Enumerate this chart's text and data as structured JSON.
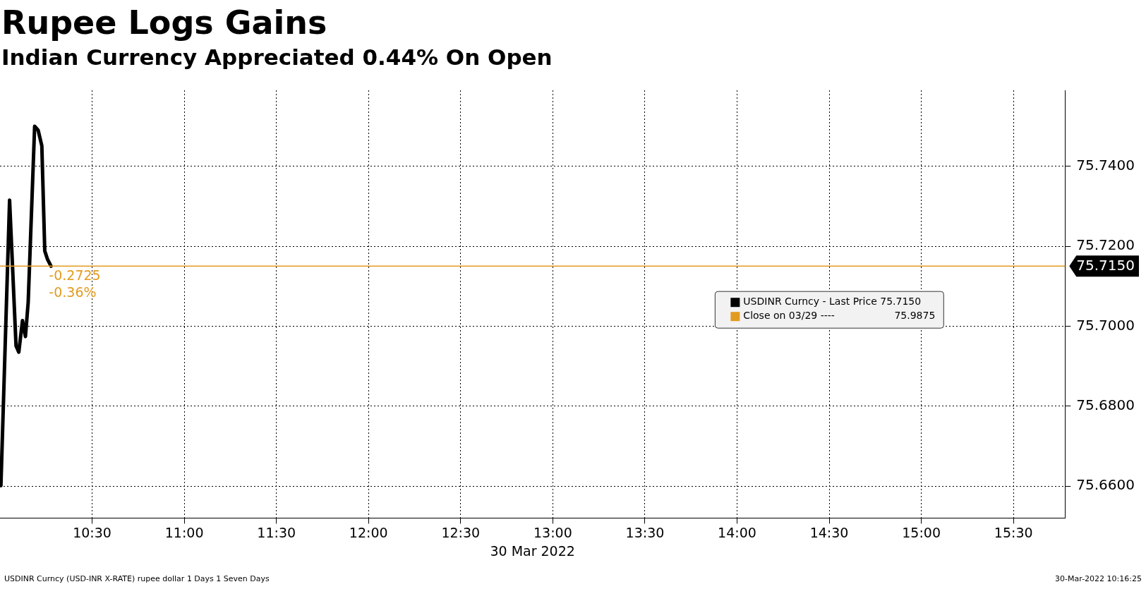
{
  "chart_data": {
    "type": "line",
    "title": "Rupee Logs Gains",
    "subtitle": "Indian Currency Appreciated 0.44% On Open",
    "xlabel": "30 Mar 2022",
    "x": [
      10.005,
      10.052,
      10.087,
      10.102,
      10.122,
      10.138,
      10.153,
      10.188,
      10.207,
      10.227,
      10.243,
      10.258,
      10.277
    ],
    "series": [
      {
        "name": "USDINR Curncy - Last Price 75.7150",
        "color": "#000000",
        "values": [
          75.6601,
          75.7315,
          75.6951,
          75.6935,
          75.7014,
          75.6974,
          75.706,
          75.75,
          75.749,
          75.7451,
          75.7188,
          75.7167,
          75.715
        ]
      }
    ],
    "xlim": [
      10.0,
      15.78
    ],
    "xticks": [
      {
        "value": 10.5,
        "label": "10:30"
      },
      {
        "value": 11,
        "label": "11:00"
      },
      {
        "value": 11.5,
        "label": "11:30"
      },
      {
        "value": 12,
        "label": "12:00"
      },
      {
        "value": 12.5,
        "label": "12:30"
      },
      {
        "value": 13,
        "label": "13:00"
      },
      {
        "value": 13.5,
        "label": "13:30"
      },
      {
        "value": 14,
        "label": "14:00"
      },
      {
        "value": 14.5,
        "label": "14:30"
      },
      {
        "value": 15,
        "label": "15:00"
      },
      {
        "value": 15.5,
        "label": "15:30"
      }
    ],
    "ylim": [
      75.652,
      75.759
    ],
    "yticks": [
      {
        "value": 75.66,
        "label": "75.6600"
      },
      {
        "value": 75.68,
        "label": "75.6800"
      },
      {
        "value": 75.7,
        "label": "75.7000"
      },
      {
        "value": 75.715,
        "label": "75.7150"
      },
      {
        "value": 75.72,
        "label": "75.7200"
      },
      {
        "value": 75.74,
        "label": "75.7400"
      }
    ],
    "ref_lines": [
      {
        "axis": "y",
        "value": 75.715,
        "label": "Close on 03/29 ----                   75.9875",
        "color": "#e39b1f"
      }
    ],
    "annotations": [
      {
        "text": "-0.2725",
        "x": 10.277,
        "y": 75.715
      },
      {
        "text": "-0.36%",
        "x": 10.277,
        "y": 75.715
      },
      "USDINR Curncy (USD-INR X-RATE) rupee dollar 1 Days 1 Seven Days",
      "30-Mar-2022 10:16:25"
    ],
    "grid": true,
    "legend": "right",
    "line_style": "solid",
    "marker": "none"
  }
}
